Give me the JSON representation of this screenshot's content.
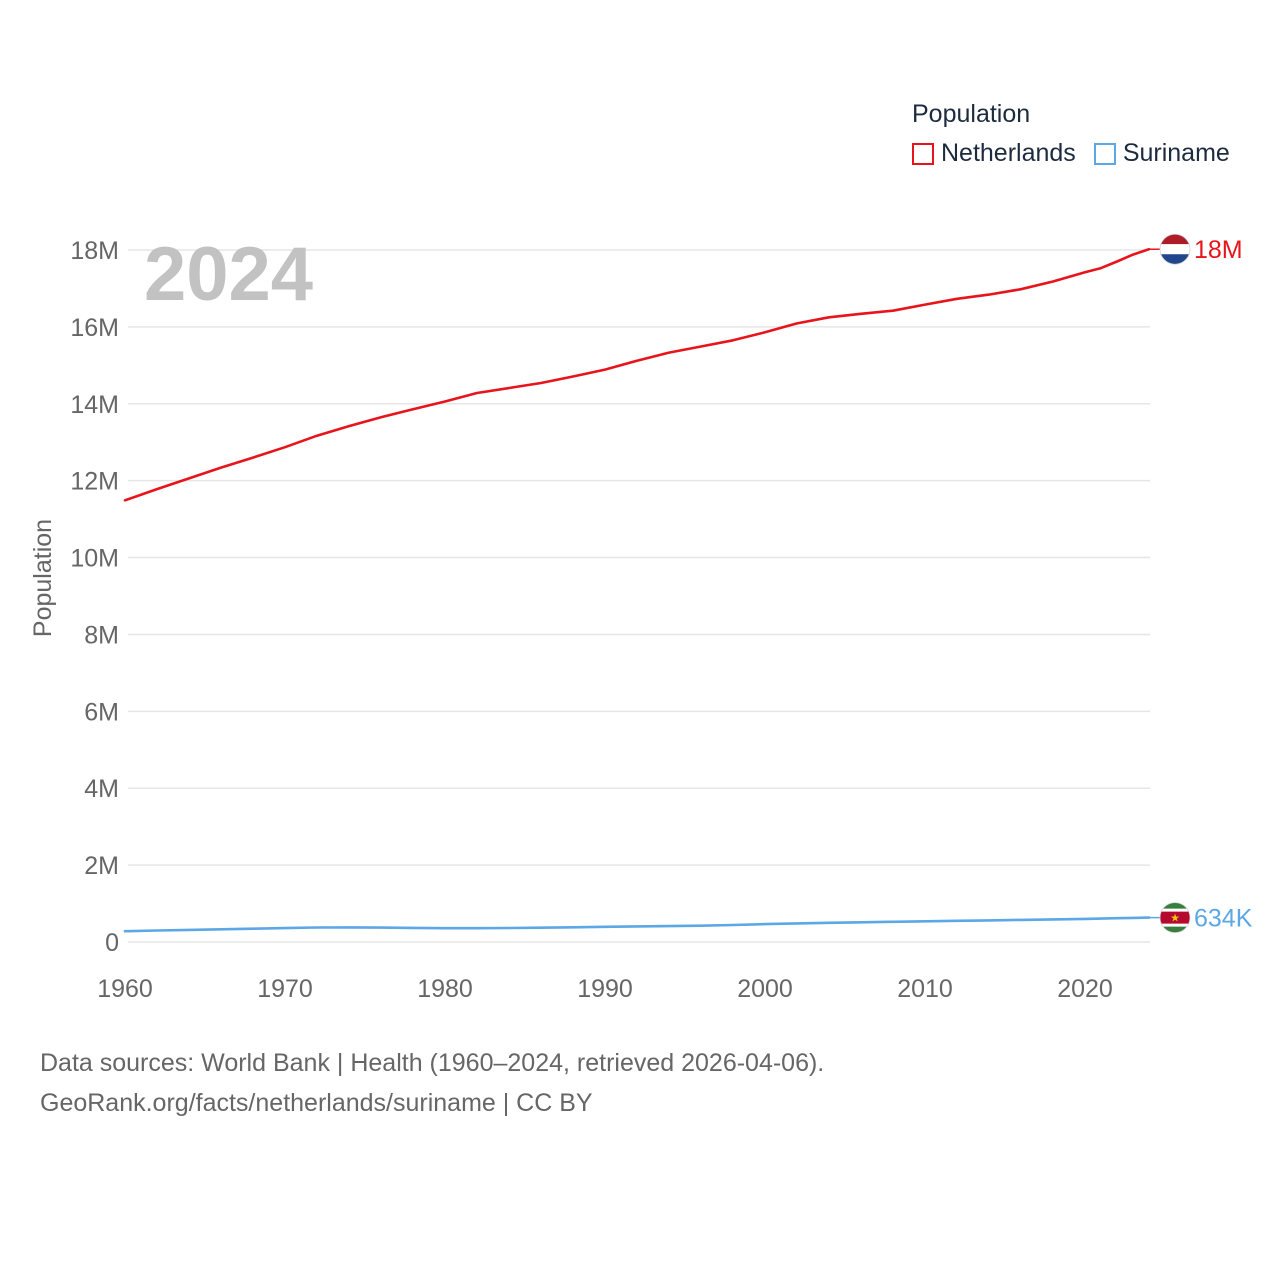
{
  "legend": {
    "title": "Population",
    "items": [
      {
        "name": "Netherlands",
        "color": "#e8141c"
      },
      {
        "name": "Suriname",
        "color": "#5ca7e6"
      }
    ]
  },
  "footer": {
    "line1": "Data sources: World Bank | Health (1960–2024, retrieved 2026-04-06).",
    "line2": "GeoRank.org/facts/netherlands/suriname | CC BY"
  },
  "chart_data": {
    "type": "line",
    "year_label": "2024",
    "ylabel": "Population",
    "xlim": [
      1960,
      2024
    ],
    "ylim": [
      0,
      18000000
    ],
    "x_ticks": [
      "1960",
      "1970",
      "1980",
      "1990",
      "2000",
      "2010",
      "2020"
    ],
    "y_ticks": [
      {
        "value": 0,
        "label": "0"
      },
      {
        "value": 2000000,
        "label": "2M"
      },
      {
        "value": 4000000,
        "label": "4M"
      },
      {
        "value": 6000000,
        "label": "6M"
      },
      {
        "value": 8000000,
        "label": "8M"
      },
      {
        "value": 10000000,
        "label": "10M"
      },
      {
        "value": 12000000,
        "label": "12M"
      },
      {
        "value": 14000000,
        "label": "14M"
      },
      {
        "value": 16000000,
        "label": "16M"
      },
      {
        "value": 18000000,
        "label": "18M"
      }
    ],
    "x": [
      1960,
      1962,
      1964,
      1966,
      1968,
      1970,
      1972,
      1974,
      1976,
      1978,
      1980,
      1982,
      1984,
      1986,
      1988,
      1990,
      1992,
      1994,
      1996,
      1998,
      2000,
      2002,
      2004,
      2006,
      2008,
      2010,
      2012,
      2014,
      2016,
      2018,
      2020,
      2021,
      2022,
      2023,
      2024
    ],
    "series": [
      {
        "name": "Netherlands",
        "color": "#e8141c",
        "end_label": "18M",
        "flag": "netherlands-flag",
        "values": [
          11490000,
          11780000,
          12060000,
          12340000,
          12600000,
          12870000,
          13170000,
          13420000,
          13650000,
          13860000,
          14060000,
          14280000,
          14410000,
          14540000,
          14710000,
          14890000,
          15120000,
          15330000,
          15490000,
          15650000,
          15860000,
          16090000,
          16250000,
          16340000,
          16420000,
          16580000,
          16730000,
          16840000,
          16980000,
          17180000,
          17420000,
          17530000,
          17700000,
          17880000,
          18020000
        ]
      },
      {
        "name": "Suriname",
        "color": "#5ca7e6",
        "end_label": "634K",
        "flag": "suriname-flag",
        "values": [
          282000,
          300000,
          315000,
          330000,
          345000,
          362000,
          378000,
          380000,
          375000,
          368000,
          360000,
          360000,
          364000,
          372000,
          383000,
          395000,
          405000,
          413000,
          425000,
          443000,
          465000,
          485000,
          500000,
          512000,
          525000,
          538000,
          552000,
          563000,
          576000,
          588000,
          602000,
          609000,
          618000,
          626000,
          634000
        ]
      }
    ]
  }
}
